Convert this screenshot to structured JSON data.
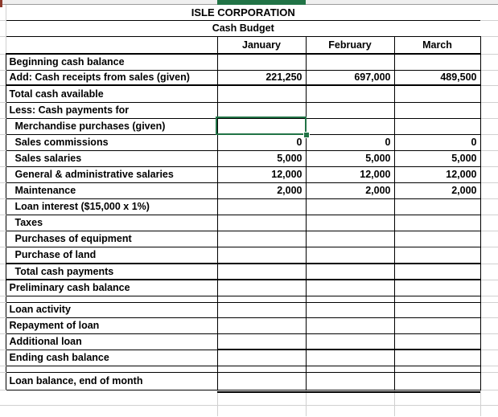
{
  "sheet": {
    "title": "ISLE CORPORATION",
    "subtitle": "Cash Budget",
    "columns": [
      "January",
      "February",
      "March"
    ],
    "rows": [
      {
        "label": "Beginning cash balance",
        "indent": false,
        "values": [
          "",
          "",
          ""
        ]
      },
      {
        "label": "Add: Cash receipts from sales (given)",
        "indent": false,
        "values": [
          "221,250",
          "697,000",
          "489,500"
        ]
      },
      {
        "label": "Total cash available",
        "indent": false,
        "values": [
          "",
          "",
          ""
        ]
      },
      {
        "label": "Less: Cash payments for",
        "indent": false,
        "values": [
          "",
          "",
          ""
        ]
      },
      {
        "label": "Merchandise purchases (given)",
        "indent": true,
        "values": [
          "",
          "",
          ""
        ],
        "selected_column": "January"
      },
      {
        "label": "Sales commissions",
        "indent": true,
        "values": [
          "0",
          "0",
          "0"
        ]
      },
      {
        "label": "Sales salaries",
        "indent": true,
        "values": [
          "5,000",
          "5,000",
          "5,000"
        ]
      },
      {
        "label": "General & administrative salaries",
        "indent": true,
        "values": [
          "12,000",
          "12,000",
          "12,000"
        ]
      },
      {
        "label": "Maintenance",
        "indent": true,
        "values": [
          "2,000",
          "2,000",
          "2,000"
        ]
      },
      {
        "label": "Loan interest ($15,000 x 1%)",
        "indent": true,
        "values": [
          "",
          "",
          ""
        ]
      },
      {
        "label": "Taxes",
        "indent": true,
        "values": [
          "",
          "",
          ""
        ]
      },
      {
        "label": "Purchases of equipment",
        "indent": true,
        "values": [
          "",
          "",
          ""
        ]
      },
      {
        "label": "Purchase of land",
        "indent": true,
        "values": [
          "",
          "",
          ""
        ]
      },
      {
        "label": "Total cash payments",
        "indent": true,
        "values": [
          "",
          "",
          ""
        ]
      },
      {
        "label": "Preliminary cash balance",
        "indent": false,
        "values": [
          "",
          "",
          ""
        ]
      },
      {
        "label": "Loan activity",
        "indent": false,
        "values": [
          "",
          "",
          ""
        ]
      },
      {
        "label": "Repayment of loan",
        "indent": false,
        "values": [
          "",
          "",
          ""
        ]
      },
      {
        "label": "Additional loan",
        "indent": false,
        "values": [
          "",
          "",
          ""
        ]
      },
      {
        "label": "Ending cash balance",
        "indent": false,
        "values": [
          "",
          "",
          ""
        ]
      },
      {
        "label": "Loan balance, end of month",
        "indent": false,
        "values": [
          "",
          "",
          ""
        ]
      }
    ],
    "colors": {
      "selection_green": "#217346",
      "border_black": "#000000",
      "gridline_gray": "#d0d0d0"
    }
  }
}
